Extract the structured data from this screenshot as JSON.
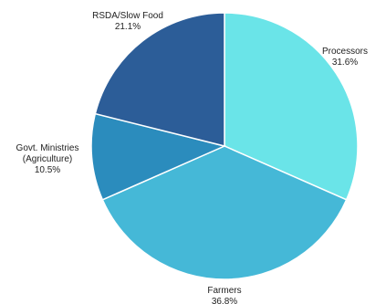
{
  "chart_data": {
    "type": "pie",
    "title": "",
    "categories": [
      "Processors",
      "Farmers",
      "Govt. Ministries (Agriculture)",
      "RSDA/Slow Food"
    ],
    "values": [
      31.6,
      36.8,
      10.5,
      21.1
    ],
    "value_labels": [
      "31.6%",
      "36.8%",
      "10.5%",
      "21.1%"
    ],
    "label_lines": [
      [
        "Processors"
      ],
      [
        "Farmers"
      ],
      [
        "Govt. Ministries",
        "(Agriculture)"
      ],
      [
        "RSDA/Slow Food"
      ]
    ],
    "colors": [
      "#6ae4e8",
      "#45b8d7",
      "#2b8cbd",
      "#2c5d98"
    ],
    "start_angle_deg": 0,
    "direction": "clockwise",
    "legend": "none"
  }
}
